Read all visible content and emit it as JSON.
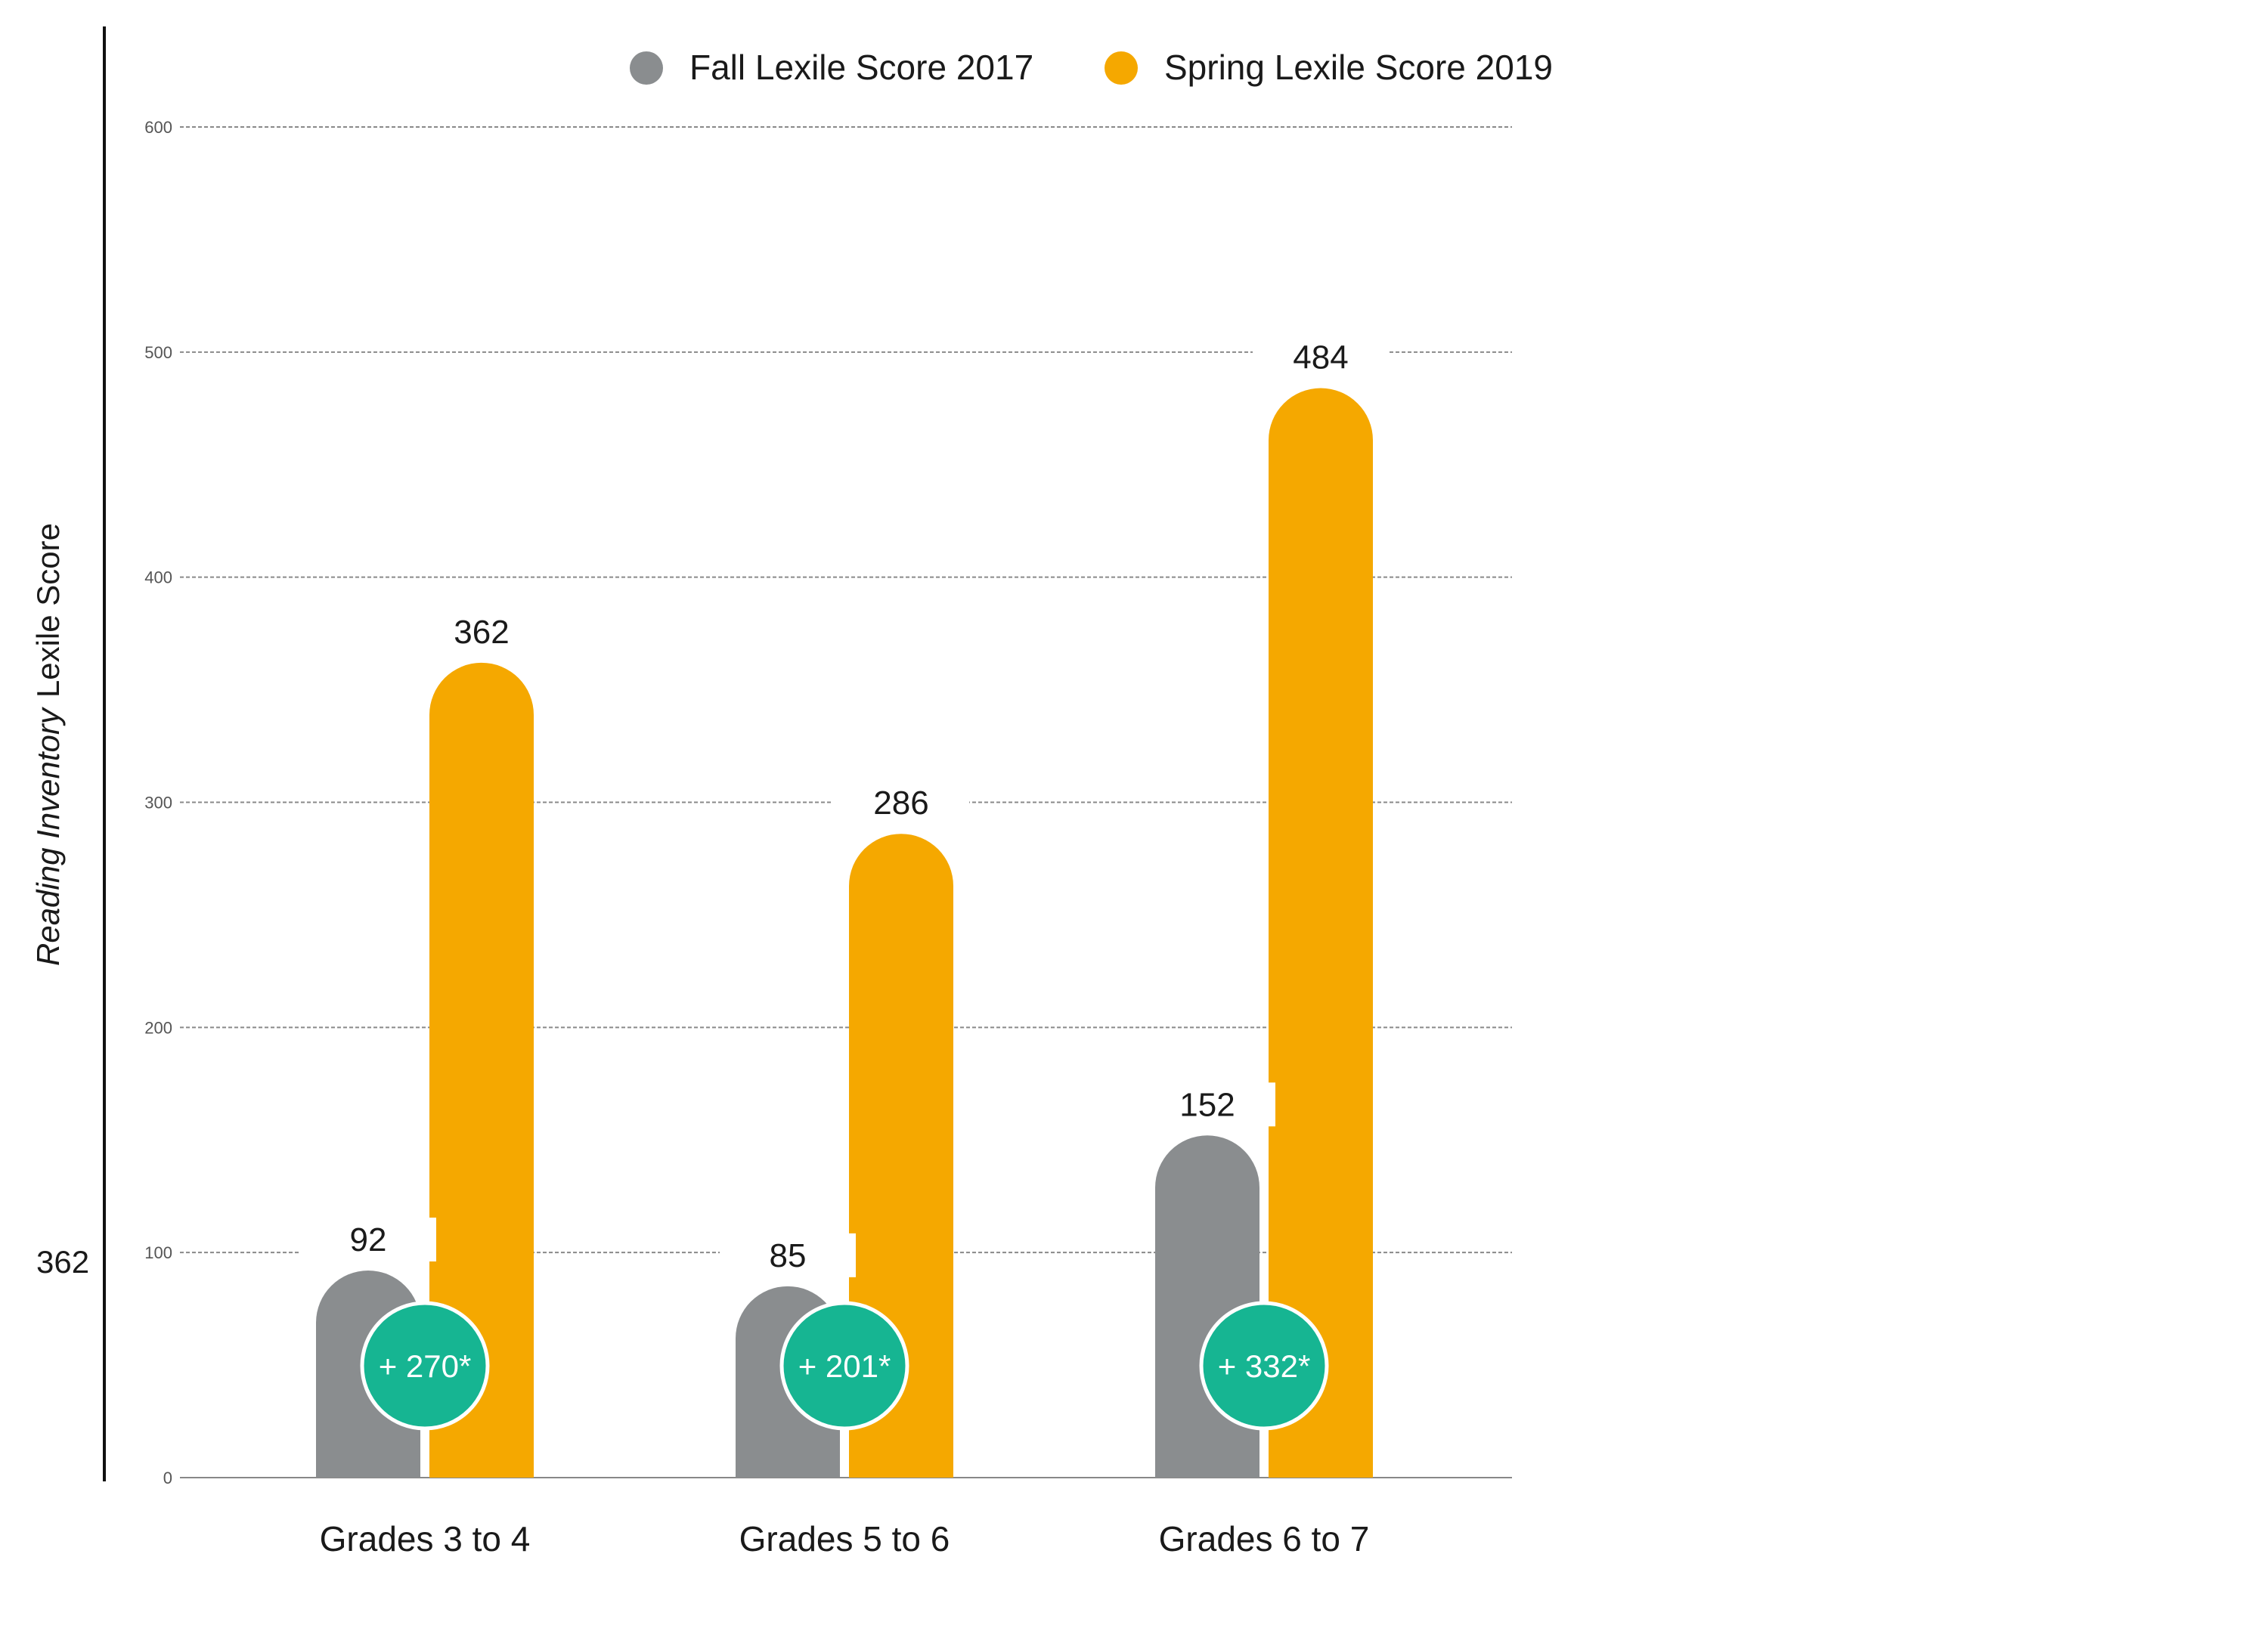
{
  "chart_data": {
    "type": "bar",
    "categories": [
      "Grades 3 to 4",
      "Grades 5 to 6",
      "Grades 6 to 7"
    ],
    "series": [
      {
        "name": "Fall Lexile Score 2017",
        "values": [
          92,
          85,
          152
        ],
        "color": "#8a8d8f"
      },
      {
        "name": "Spring Lexile Score 2019",
        "values": [
          362,
          286,
          484
        ],
        "color": "#f5a800"
      }
    ],
    "data_labels": {
      "fall": [
        "92",
        "85",
        "152"
      ],
      "spring": [
        "362",
        "286",
        "484"
      ]
    },
    "gains": [
      "+ 270*",
      "+ 201*",
      "+ 332*"
    ],
    "gain_color": "#16b592",
    "ylabel_italic": "Reading Inventory",
    "ylabel_rest": "Lexile Score",
    "ylim": [
      0,
      600
    ],
    "yticks": [
      0,
      100,
      200,
      300,
      400,
      500,
      600
    ],
    "ytick_labels": [
      "0",
      "100",
      "200",
      "300",
      "400",
      "500",
      "600"
    ],
    "grid": true,
    "legend": "top"
  },
  "side_value": "362"
}
